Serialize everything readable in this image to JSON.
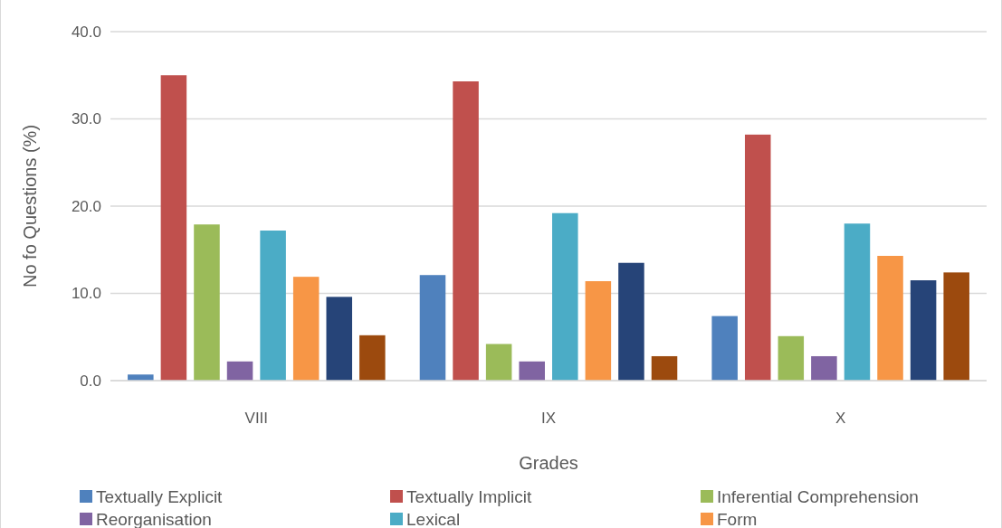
{
  "chart_data": {
    "type": "bar",
    "xlabel": "Grades",
    "ylabel": "No fo Questions (%)",
    "categories": [
      "VIII",
      "IX",
      "X"
    ],
    "series": [
      {
        "name": "Textually Explicit",
        "color": "#4f81bd",
        "values": [
          0.7,
          12.1,
          7.4
        ]
      },
      {
        "name": "Textually Implicit",
        "color": "#c0504d",
        "values": [
          35.0,
          34.3,
          28.2
        ]
      },
      {
        "name": "Inferential Comprehension",
        "color": "#9bbb59",
        "values": [
          17.9,
          4.2,
          5.1
        ]
      },
      {
        "name": "Reorganisation",
        "color": "#8064a2",
        "values": [
          2.2,
          2.2,
          2.8
        ]
      },
      {
        "name": "Lexical",
        "color": "#4bacc6",
        "values": [
          17.2,
          19.2,
          18.0
        ]
      },
      {
        "name": "Form",
        "color": "#f79646",
        "values": [
          11.9,
          11.4,
          14.3
        ]
      },
      {
        "color": "#264478",
        "values": [
          9.6,
          13.5,
          11.5
        ]
      },
      {
        "color": "#9c4a0e",
        "values": [
          5.2,
          2.8,
          12.4
        ]
      }
    ],
    "ylim": [
      0,
      40
    ],
    "yticks": [
      {
        "value": 0,
        "label": "0.0"
      },
      {
        "value": 10,
        "label": "10.0"
      },
      {
        "value": 20,
        "label": "20.0"
      },
      {
        "value": 30,
        "label": "30.0"
      },
      {
        "value": 40,
        "label": "40.0"
      }
    ],
    "grid": "y",
    "legend": "bottom"
  }
}
